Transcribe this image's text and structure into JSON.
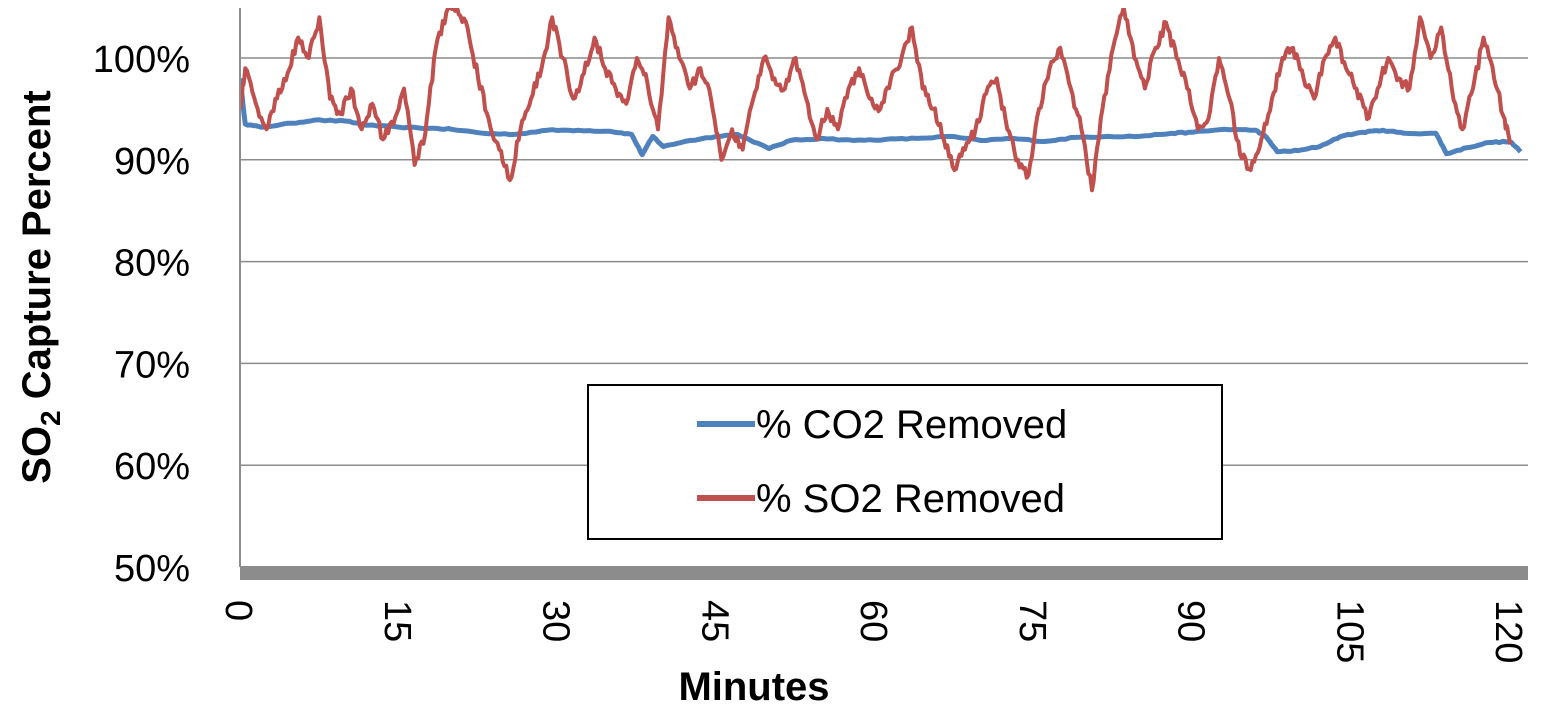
{
  "chart_data": {
    "type": "line",
    "title": "",
    "xlabel": "Minutes",
    "ylabel_main": "SO",
    "ylabel_sub": "2",
    "ylabel_rest": " Capture Percent",
    "xlim": [
      0,
      120
    ],
    "ylim": [
      50,
      100
    ],
    "y_ticks": [
      50,
      60,
      70,
      80,
      90,
      100
    ],
    "y_tick_labels": [
      "50%",
      "60%",
      "70%",
      "80%",
      "90%",
      "100%"
    ],
    "x_ticks": [
      0,
      15,
      30,
      45,
      60,
      75,
      90,
      105,
      120
    ],
    "x_tick_labels": [
      "0",
      "15",
      "30",
      "45",
      "60",
      "75",
      "90",
      "105",
      "120"
    ],
    "grid": true,
    "legend_position": "bottom-center",
    "series": [
      {
        "name": "% CO2 Removed",
        "color": "#4F81BD",
        "points": [
          [
            0,
            98
          ],
          [
            0.5,
            93.5
          ],
          [
            2,
            93.2
          ],
          [
            5,
            93.6
          ],
          [
            7,
            93.9
          ],
          [
            10,
            93.8
          ],
          [
            12,
            93.4
          ],
          [
            15,
            93.2
          ],
          [
            18,
            93.1
          ],
          [
            20,
            93.0
          ],
          [
            23,
            92.6
          ],
          [
            26,
            92.5
          ],
          [
            29,
            92.9
          ],
          [
            32,
            92.9
          ],
          [
            35,
            92.8
          ],
          [
            37,
            92.5
          ],
          [
            38,
            90.5
          ],
          [
            39,
            92.3
          ],
          [
            40,
            91.3
          ],
          [
            42,
            91.8
          ],
          [
            45,
            92.3
          ],
          [
            47,
            92.5
          ],
          [
            50,
            91.1
          ],
          [
            52,
            91.9
          ],
          [
            55,
            92.1
          ],
          [
            58,
            91.9
          ],
          [
            61,
            92.0
          ],
          [
            64,
            92.1
          ],
          [
            67,
            92.3
          ],
          [
            70,
            91.9
          ],
          [
            73,
            92.1
          ],
          [
            76,
            91.8
          ],
          [
            79,
            92.2
          ],
          [
            82,
            92.3
          ],
          [
            85,
            92.3
          ],
          [
            88,
            92.6
          ],
          [
            90,
            92.7
          ],
          [
            93,
            93.0
          ],
          [
            96,
            92.9
          ],
          [
            97,
            92.2
          ],
          [
            98,
            90.8
          ],
          [
            100,
            90.9
          ],
          [
            102,
            91.3
          ],
          [
            104,
            92.3
          ],
          [
            106,
            92.7
          ],
          [
            108,
            92.9
          ],
          [
            110,
            92.6
          ],
          [
            113,
            92.6
          ],
          [
            114,
            90.6
          ],
          [
            116,
            91.2
          ],
          [
            118,
            91.7
          ],
          [
            120,
            91.8
          ],
          [
            121,
            90.8
          ]
        ]
      },
      {
        "name": "% SO2 Removed",
        "color": "#C0504D",
        "points": [
          [
            0,
            95
          ],
          [
            0.5,
            99
          ],
          [
            1.5,
            95.5
          ],
          [
            2.5,
            93
          ],
          [
            3.5,
            96
          ],
          [
            4.5,
            98.5
          ],
          [
            5.5,
            102
          ],
          [
            6.5,
            100
          ],
          [
            7.5,
            104
          ],
          [
            8.5,
            96
          ],
          [
            9.5,
            94.5
          ],
          [
            10.5,
            97
          ],
          [
            11.5,
            93
          ],
          [
            12.5,
            95.5
          ],
          [
            13.5,
            92
          ],
          [
            14.5,
            93.5
          ],
          [
            15.5,
            97
          ],
          [
            16.5,
            89.5
          ],
          [
            17.5,
            92.5
          ],
          [
            18.5,
            101
          ],
          [
            19.5,
            104.5
          ],
          [
            20.5,
            105
          ],
          [
            21.5,
            103
          ],
          [
            22.5,
            98
          ],
          [
            23.5,
            94
          ],
          [
            24.5,
            91
          ],
          [
            25.5,
            88
          ],
          [
            26.5,
            93
          ],
          [
            27.5,
            96
          ],
          [
            28.5,
            99
          ],
          [
            29.5,
            104
          ],
          [
            30.5,
            100
          ],
          [
            31.5,
            96
          ],
          [
            32.5,
            98.5
          ],
          [
            33.5,
            102
          ],
          [
            34.5,
            99
          ],
          [
            35.5,
            97
          ],
          [
            36.5,
            95.5
          ],
          [
            37.5,
            100
          ],
          [
            38.5,
            97.5
          ],
          [
            39.5,
            93
          ],
          [
            40.5,
            104
          ],
          [
            41.5,
            100
          ],
          [
            42.5,
            97
          ],
          [
            43.5,
            99
          ],
          [
            44.5,
            96
          ],
          [
            45.5,
            90
          ],
          [
            46.5,
            93
          ],
          [
            47.5,
            91
          ],
          [
            48.5,
            96
          ],
          [
            49.5,
            100
          ],
          [
            50.5,
            98
          ],
          [
            51.5,
            97
          ],
          [
            52.5,
            100
          ],
          [
            53.5,
            96
          ],
          [
            54.5,
            92
          ],
          [
            55.5,
            95
          ],
          [
            56.5,
            93
          ],
          [
            57.5,
            97
          ],
          [
            58.5,
            99
          ],
          [
            59.5,
            96
          ],
          [
            60.5,
            95
          ],
          [
            61.5,
            98
          ],
          [
            62.5,
            100
          ],
          [
            63.5,
            103
          ],
          [
            64.5,
            97
          ],
          [
            65.5,
            95
          ],
          [
            66.5,
            92
          ],
          [
            67.5,
            89
          ],
          [
            68.5,
            91
          ],
          [
            69.5,
            93
          ],
          [
            70.5,
            96.5
          ],
          [
            71.5,
            98
          ],
          [
            72.5,
            93
          ],
          [
            73.5,
            90
          ],
          [
            74.5,
            88.5
          ],
          [
            75.5,
            95
          ],
          [
            76.5,
            99
          ],
          [
            77.5,
            101
          ],
          [
            78.5,
            97
          ],
          [
            79.5,
            93
          ],
          [
            80.5,
            87
          ],
          [
            81.5,
            95
          ],
          [
            82.5,
            101
          ],
          [
            83.5,
            105
          ],
          [
            84.5,
            100
          ],
          [
            85.5,
            97
          ],
          [
            86.5,
            101
          ],
          [
            87.5,
            103.5
          ],
          [
            88.5,
            100
          ],
          [
            89.5,
            97
          ],
          [
            90.5,
            93
          ],
          [
            91.5,
            94
          ],
          [
            92.5,
            100
          ],
          [
            93.5,
            96
          ],
          [
            94.5,
            90.5
          ],
          [
            95.5,
            89
          ],
          [
            96.5,
            92
          ],
          [
            97.5,
            96
          ],
          [
            98.5,
            100
          ],
          [
            99.5,
            101
          ],
          [
            100.5,
            98
          ],
          [
            101.5,
            96
          ],
          [
            102.5,
            100
          ],
          [
            103.5,
            102
          ],
          [
            104.5,
            99
          ],
          [
            105.5,
            97
          ],
          [
            106.5,
            94
          ],
          [
            107.5,
            97
          ],
          [
            108.5,
            100
          ],
          [
            109.5,
            98
          ],
          [
            110.5,
            97
          ],
          [
            111.5,
            104
          ],
          [
            112.5,
            100
          ],
          [
            113.5,
            103
          ],
          [
            114.5,
            97
          ],
          [
            115.5,
            93
          ],
          [
            116.5,
            97
          ],
          [
            117.5,
            102
          ],
          [
            118.5,
            98
          ],
          [
            119.5,
            94
          ],
          [
            120,
            91.5
          ]
        ]
      }
    ]
  }
}
